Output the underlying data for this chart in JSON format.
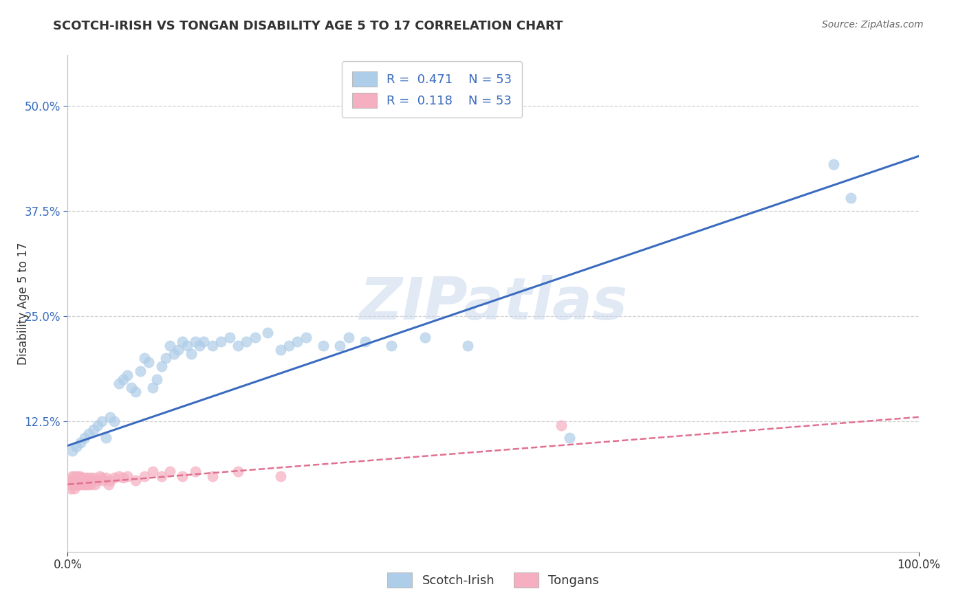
{
  "title": "SCOTCH-IRISH VS TONGAN DISABILITY AGE 5 TO 17 CORRELATION CHART",
  "source_text": "Source: ZipAtlas.com",
  "ylabel": "Disability Age 5 to 17",
  "xlim": [
    0.0,
    1.0
  ],
  "ylim": [
    -0.03,
    0.56
  ],
  "ytick_values": [
    0.125,
    0.25,
    0.375,
    0.5
  ],
  "ytick_labels": [
    "12.5%",
    "25.0%",
    "37.5%",
    "50.0%"
  ],
  "xtick_values": [
    0.0,
    1.0
  ],
  "xtick_labels": [
    "0.0%",
    "100.0%"
  ],
  "watermark": "ZIPatlas",
  "legend_blue_label": "Scotch-Irish",
  "legend_pink_label": "Tongans",
  "blue_scatter_color": "#aecde8",
  "pink_scatter_color": "#f5afc0",
  "line_blue_color": "#3a6bbf",
  "line_pink_color": "#e07090",
  "title_color": "#333333",
  "source_color": "#666666",
  "grid_color": "#d0d0d0",
  "background_color": "#ffffff",
  "watermark_color": "#c8d8ec",
  "tick_color_y": "#3a6bbf",
  "tick_color_x": "#333333",
  "scotch_irish_x": [
    0.005,
    0.01,
    0.015,
    0.02,
    0.025,
    0.03,
    0.035,
    0.04,
    0.045,
    0.05,
    0.055,
    0.06,
    0.065,
    0.07,
    0.075,
    0.08,
    0.085,
    0.09,
    0.095,
    0.1,
    0.105,
    0.11,
    0.115,
    0.12,
    0.125,
    0.13,
    0.135,
    0.14,
    0.145,
    0.15,
    0.155,
    0.16,
    0.17,
    0.18,
    0.19,
    0.2,
    0.21,
    0.22,
    0.235,
    0.25,
    0.26,
    0.27,
    0.28,
    0.3,
    0.32,
    0.33,
    0.35,
    0.38,
    0.42,
    0.47,
    0.59,
    0.9,
    0.92
  ],
  "scotch_irish_y": [
    0.09,
    0.095,
    0.1,
    0.105,
    0.11,
    0.115,
    0.12,
    0.125,
    0.105,
    0.13,
    0.125,
    0.17,
    0.175,
    0.18,
    0.165,
    0.16,
    0.185,
    0.2,
    0.195,
    0.165,
    0.175,
    0.19,
    0.2,
    0.215,
    0.205,
    0.21,
    0.22,
    0.215,
    0.205,
    0.22,
    0.215,
    0.22,
    0.215,
    0.22,
    0.225,
    0.215,
    0.22,
    0.225,
    0.23,
    0.21,
    0.215,
    0.22,
    0.225,
    0.215,
    0.215,
    0.225,
    0.22,
    0.215,
    0.225,
    0.215,
    0.105,
    0.43,
    0.39
  ],
  "tongan_x": [
    0.002,
    0.003,
    0.004,
    0.005,
    0.006,
    0.007,
    0.008,
    0.009,
    0.01,
    0.011,
    0.012,
    0.013,
    0.014,
    0.015,
    0.016,
    0.017,
    0.018,
    0.019,
    0.02,
    0.021,
    0.022,
    0.023,
    0.024,
    0.025,
    0.026,
    0.027,
    0.028,
    0.03,
    0.032,
    0.035,
    0.038,
    0.04,
    0.042,
    0.045,
    0.048,
    0.05,
    0.055,
    0.06,
    0.065,
    0.07,
    0.08,
    0.09,
    0.1,
    0.11,
    0.12,
    0.135,
    0.15,
    0.17,
    0.2,
    0.25,
    0.58,
    0.008,
    0.012
  ],
  "tongan_y": [
    0.05,
    0.055,
    0.045,
    0.06,
    0.055,
    0.05,
    0.06,
    0.055,
    0.055,
    0.06,
    0.055,
    0.05,
    0.06,
    0.058,
    0.05,
    0.055,
    0.058,
    0.05,
    0.055,
    0.05,
    0.058,
    0.055,
    0.05,
    0.055,
    0.058,
    0.05,
    0.055,
    0.058,
    0.05,
    0.055,
    0.06,
    0.058,
    0.055,
    0.058,
    0.05,
    0.055,
    0.058,
    0.06,
    0.058,
    0.06,
    0.055,
    0.06,
    0.065,
    0.06,
    0.065,
    0.06,
    0.065,
    0.06,
    0.065,
    0.06,
    0.12,
    0.045,
    0.05
  ],
  "si_line_x0": 0.0,
  "si_line_y0": 0.096,
  "si_line_x1": 1.0,
  "si_line_y1": 0.44,
  "to_line_x0": 0.0,
  "to_line_y0": 0.05,
  "to_line_x1": 1.0,
  "to_line_y1": 0.13
}
